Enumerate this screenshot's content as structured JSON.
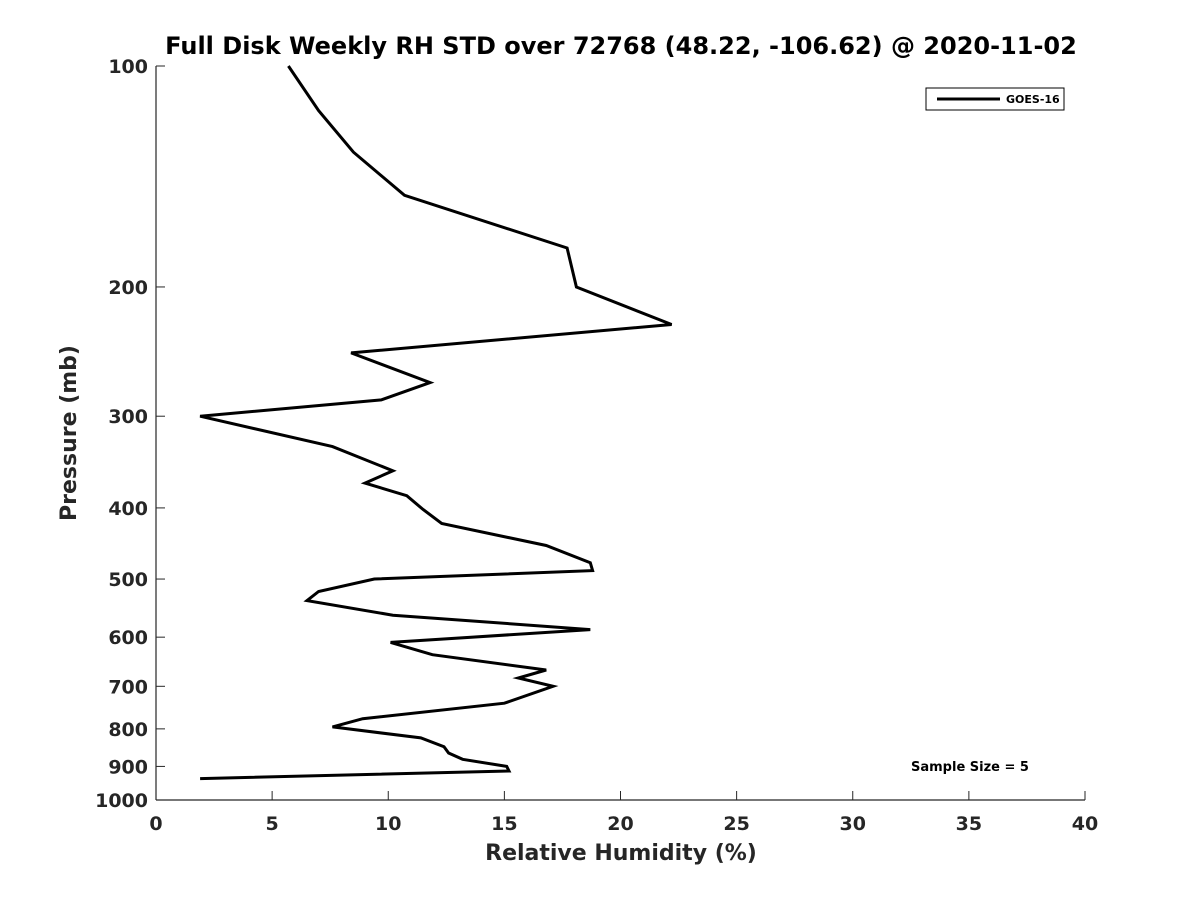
{
  "chart_data": {
    "type": "line",
    "title": "Full Disk Weekly RH STD over 72768 (48.22, -106.62) @ 2020-11-02",
    "xlabel": "Relative Humidity (%)",
    "ylabel": "Pressure (mb)",
    "xlim": [
      0,
      40
    ],
    "ylim": [
      100,
      1000
    ],
    "yscale": "log",
    "y_reversed": true,
    "xticks": [
      0,
      5,
      10,
      15,
      20,
      25,
      30,
      35,
      40
    ],
    "yticks": [
      100,
      200,
      300,
      400,
      500,
      600,
      700,
      800,
      900,
      1000
    ],
    "grid": false,
    "legend_position": "top-right",
    "line_color": "#000000",
    "series": [
      {
        "name": "GOES-16",
        "x": [
          5.7,
          7.0,
          8.5,
          10.7,
          17.7,
          18.1,
          22.2,
          8.4,
          11.8,
          9.7,
          1.9,
          7.6,
          10.2,
          9.0,
          10.8,
          11.5,
          12.3,
          16.8,
          18.7,
          18.8,
          9.4,
          7.0,
          6.5,
          10.2,
          18.7,
          10.1,
          11.9,
          16.8,
          15.6,
          17.1,
          15.0,
          8.9,
          7.6,
          11.4,
          12.4,
          12.6,
          13.2,
          15.1,
          15.2,
          1.9
        ],
        "y": [
          100,
          115,
          131,
          150,
          177,
          200,
          225,
          246,
          270,
          285,
          300,
          330,
          356,
          370,
          385,
          402,
          420,
          450,
          475,
          487,
          500,
          520,
          535,
          560,
          586,
          610,
          634,
          665,
          682,
          700,
          738,
          775,
          795,
          823,
          846,
          863,
          880,
          900,
          913,
          935
        ]
      }
    ],
    "legend": [
      "GOES-16"
    ],
    "annotation": "Sample Size = 5"
  }
}
